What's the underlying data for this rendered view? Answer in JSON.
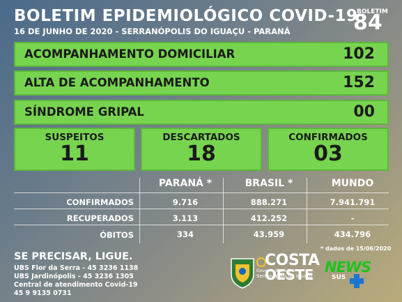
{
  "header": {
    "title": "BOLETIM EPIDEMIOLÓGICO COVID-19",
    "subtitle": "16 DE JUNHO DE 2020 - SERRANÓPOLIS DO IGUAÇU - PARANÁ",
    "boletim_label": "BOLETIM",
    "boletim_number": "84"
  },
  "rows": [
    {
      "label": "ACOMPANHAMENTO DOMICILIAR",
      "value": "102"
    },
    {
      "label": "ALTA DE ACOMPANHAMENTO",
      "value": "152"
    },
    {
      "label": "SÍNDROME GRIPAL",
      "value": "00"
    }
  ],
  "boxes": [
    {
      "label": "SUSPEITOS",
      "value": "11"
    },
    {
      "label": "DESCARTADOS",
      "value": "18"
    },
    {
      "label": "CONFIRMADOS",
      "value": "03"
    }
  ],
  "stats": {
    "columns": [
      "PARANÁ *",
      "BRASIL *",
      "MUNDO"
    ],
    "rows": [
      {
        "label": "CONFIRMADOS",
        "values": [
          "9.716",
          "888.271",
          "7.941.791"
        ]
      },
      {
        "label": "RECUPERADOS",
        "values": [
          "3.113",
          "412.252",
          "-"
        ]
      },
      {
        "label": "ÓBITOS",
        "values": [
          "334",
          "43.959",
          "434.796"
        ]
      }
    ],
    "note": "* dados de 15/06/2020"
  },
  "help": {
    "title": "SE PRECISAR, LIGUE.",
    "lines": [
      "UBS Flor da Serra - 45 3236 1138",
      "UBS Jardinópolis  - 45 3236 1305",
      "Central de atendimento Covid-19",
      "45 9 9135 0731"
    ]
  },
  "logos": {
    "gov_small": "Governo Municipal",
    "city": "Serranópolis do Iguaçu",
    "brand_line1": "COSTA",
    "brand_line2": "OESTE",
    "news": "NEWS",
    "sus": "SUS"
  },
  "colors": {
    "green_box": "#77d44f",
    "news_green": "#1fc21f"
  }
}
